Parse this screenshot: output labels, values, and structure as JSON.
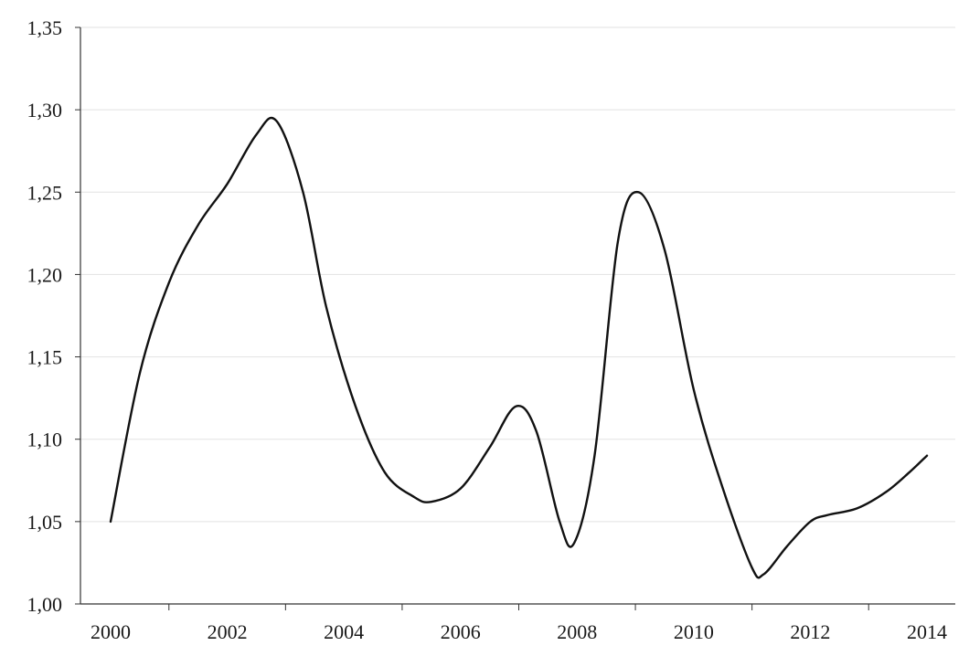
{
  "chart_data": {
    "type": "line",
    "title": "",
    "xlabel": "",
    "ylabel": "",
    "x_ticks": [
      "2000",
      "2002",
      "2004",
      "2006",
      "2008",
      "2010",
      "2012",
      "2014"
    ],
    "y_ticks": [
      "1,00",
      "1,05",
      "1,10",
      "1,15",
      "1,20",
      "1,25",
      "1,30",
      "1,35"
    ],
    "xlim": [
      2000,
      2014
    ],
    "ylim": [
      1.0,
      1.35
    ],
    "grid": "horizontal",
    "legend": "none",
    "colors": {
      "line": "#111111",
      "grid": "#e2e2e2",
      "axis": "#333333",
      "text": "#1a1a1a"
    },
    "series": [
      {
        "x": [
          2000,
          2000.5,
          2001,
          2001.5,
          2002,
          2002.5,
          2002.85,
          2003.3,
          2003.7,
          2004.2,
          2004.7,
          2005.2,
          2005.5,
          2006,
          2006.5,
          2006.95,
          2007.3,
          2007.7,
          2007.95,
          2008.3,
          2008.7,
          2009.05,
          2009.5,
          2010,
          2010.5,
          2011,
          2011.2,
          2011.6,
          2012,
          2012.3,
          2012.8,
          2013.3,
          2013.7,
          2014
        ],
        "y": [
          1.05,
          1.14,
          1.195,
          1.23,
          1.255,
          1.285,
          1.293,
          1.25,
          1.18,
          1.12,
          1.08,
          1.065,
          1.062,
          1.07,
          1.095,
          1.12,
          1.105,
          1.05,
          1.037,
          1.09,
          1.22,
          1.25,
          1.215,
          1.13,
          1.07,
          1.022,
          1.018,
          1.035,
          1.05,
          1.054,
          1.058,
          1.068,
          1.08,
          1.09
        ]
      }
    ]
  }
}
